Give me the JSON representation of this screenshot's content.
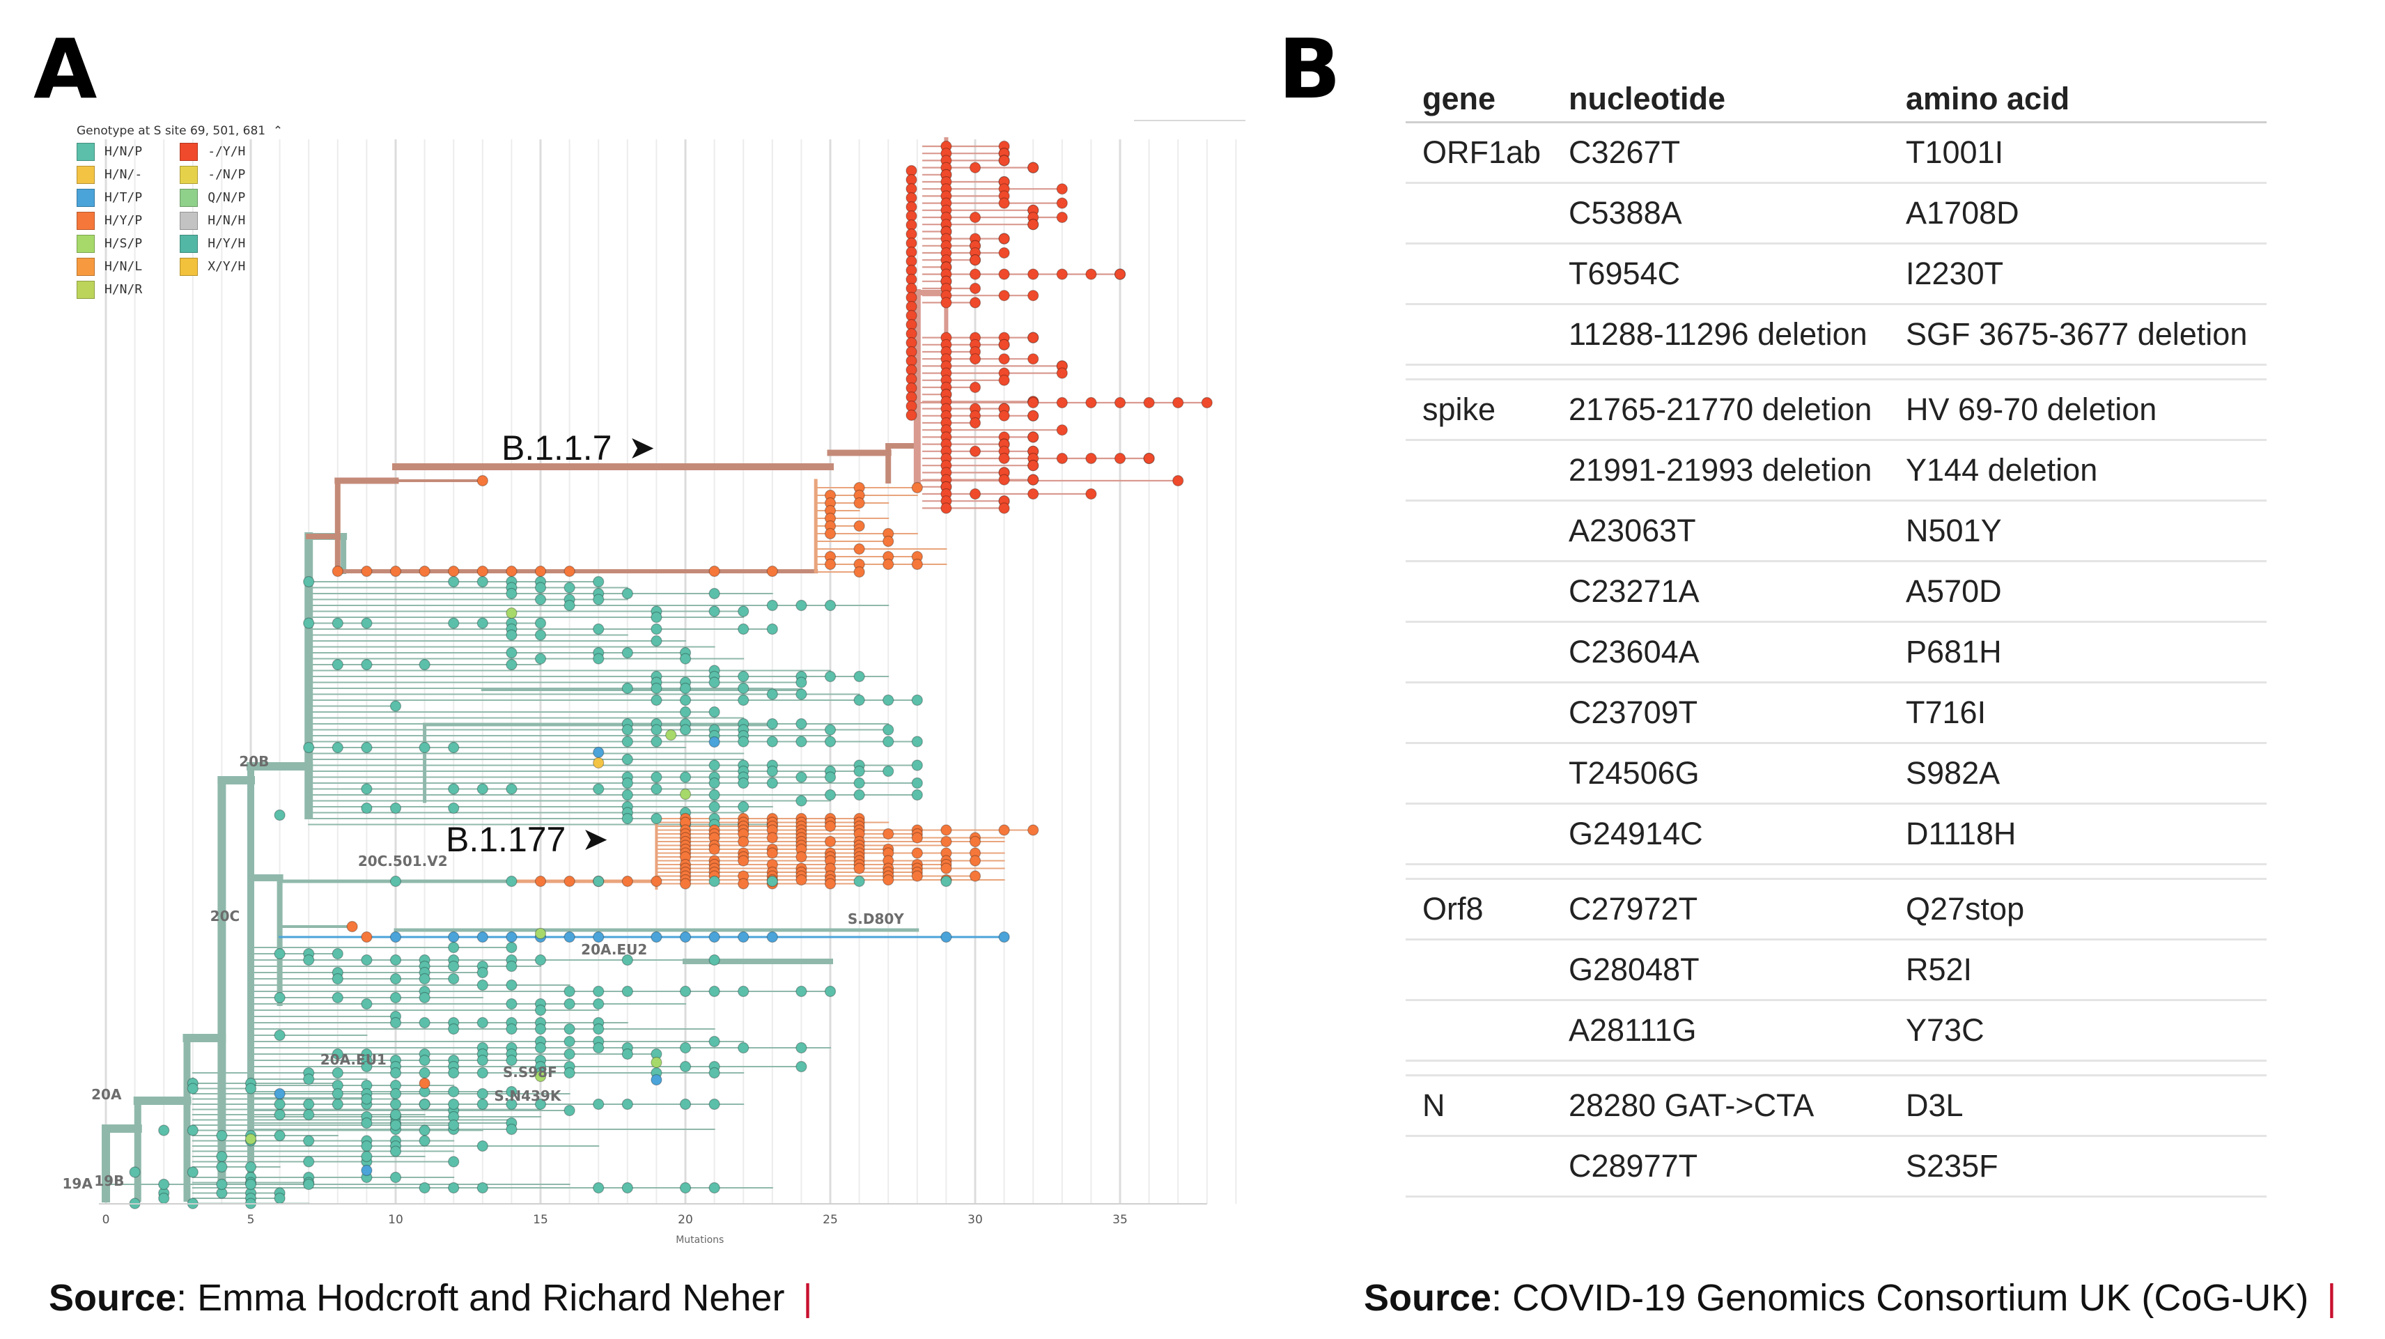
{
  "panel_a": {
    "letter": "A",
    "legend": {
      "title": "Genotype at S site 69, 501, 681",
      "items": [
        {
          "label": "H/N/P",
          "color": "#5bbfa9"
        },
        {
          "label": "H/N/-",
          "color": "#f3c344"
        },
        {
          "label": "H/T/P",
          "color": "#4aa3d9"
        },
        {
          "label": "H/Y/P",
          "color": "#f5773a"
        },
        {
          "label": "H/S/P",
          "color": "#a6d96a"
        },
        {
          "label": "H/N/L",
          "color": "#f79a3f"
        },
        {
          "label": "H/N/R",
          "color": "#bcd45a"
        },
        {
          "label": "-/Y/H",
          "color": "#ef4a2b"
        },
        {
          "label": "-/N/P",
          "color": "#e6d24a"
        },
        {
          "label": "Q/N/P",
          "color": "#8fd08a"
        },
        {
          "label": "H/N/H",
          "color": "#c3c3c3"
        },
        {
          "label": "H/Y/H",
          "color": "#52b7a4"
        },
        {
          "label": "X/Y/H",
          "color": "#f2c23c"
        }
      ]
    },
    "x_axis": {
      "ticks": [
        "0",
        "5",
        "10",
        "15",
        "20",
        "25",
        "30",
        "35"
      ],
      "label": "Mutations"
    },
    "clade_labels": [
      "19A",
      "19B",
      "20A",
      "20B",
      "20C",
      "20C.501.V2",
      "20A.EU1",
      "20A.EU2",
      "S.D80Y",
      "S.S98F",
      "S.N439K"
    ],
    "annotations": [
      {
        "text": "B.1.1.7",
        "arrow": "➤"
      },
      {
        "text": "B.1.177",
        "arrow": "➤"
      }
    ],
    "source": {
      "bold": "Source",
      "rest": ": Emma Hodcroft and Richard Neher",
      "bar": "|"
    }
  },
  "panel_b": {
    "letter": "B",
    "headers": [
      "gene",
      "nucleotide",
      "amino acid"
    ],
    "groups": [
      {
        "gene": "ORF1ab",
        "rows": [
          [
            "C3267T",
            "T1001I"
          ],
          [
            "C5388A",
            "A1708D"
          ],
          [
            "T6954C",
            "I2230T"
          ],
          [
            "11288-11296 deletion",
            "SGF 3675-3677 deletion"
          ]
        ]
      },
      {
        "gene": "spike",
        "rows": [
          [
            "21765-21770 deletion",
            "HV 69-70 deletion"
          ],
          [
            "21991-21993 deletion",
            "Y144 deletion"
          ],
          [
            "A23063T",
            "N501Y"
          ],
          [
            "C23271A",
            "A570D"
          ],
          [
            "C23604A",
            "P681H"
          ],
          [
            "C23709T",
            "T716I"
          ],
          [
            "T24506G",
            "S982A"
          ],
          [
            "G24914C",
            "D1118H"
          ]
        ]
      },
      {
        "gene": "Orf8",
        "rows": [
          [
            "C27972T",
            "Q27stop"
          ],
          [
            "G28048T",
            "R52I"
          ],
          [
            "A28111G",
            "Y73C"
          ]
        ]
      },
      {
        "gene": "N",
        "rows": [
          [
            "28280 GAT->CTA",
            "D3L"
          ],
          [
            "C28977T",
            "S235F"
          ]
        ]
      }
    ],
    "source": {
      "bold": "Source",
      "rest": ": COVID-19 Genomics Consortium UK (CoG-UK)",
      "bar": "|"
    }
  }
}
